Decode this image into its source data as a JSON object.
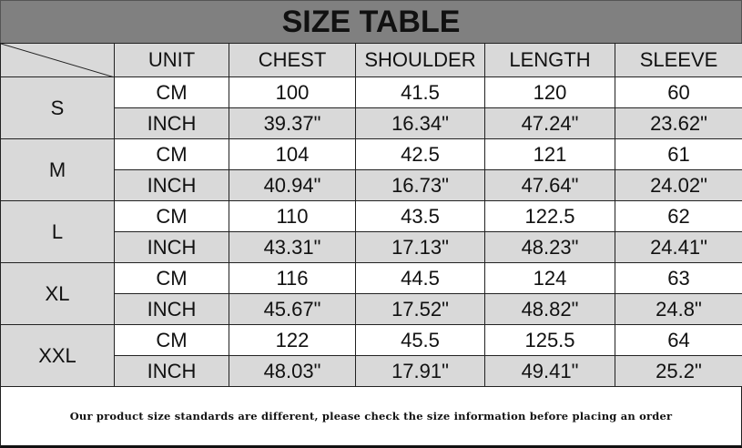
{
  "title": "SIZE TABLE",
  "headers": [
    "UNIT",
    "CHEST",
    "SHOULDER",
    "LENGTH",
    "SLEEVE"
  ],
  "sizes": [
    {
      "size": "S",
      "cm": [
        "CM",
        "100",
        "41.5",
        "120",
        "60"
      ],
      "inch": [
        "INCH",
        "39.37\"",
        "16.34\"",
        "47.24\"",
        "23.62\""
      ]
    },
    {
      "size": "M",
      "cm": [
        "CM",
        "104",
        "42.5",
        "121",
        "61"
      ],
      "inch": [
        "INCH",
        "40.94\"",
        "16.73\"",
        "47.64\"",
        "24.02\""
      ]
    },
    {
      "size": "L",
      "cm": [
        "CM",
        "110",
        "43.5",
        "122.5",
        "62"
      ],
      "inch": [
        "INCH",
        "43.31\"",
        "17.13\"",
        "48.23\"",
        "24.41\""
      ]
    },
    {
      "size": "XL",
      "cm": [
        "CM",
        "116",
        "44.5",
        "124",
        "63"
      ],
      "inch": [
        "INCH",
        "45.67\"",
        "17.52\"",
        "48.82\"",
        "24.8\""
      ]
    },
    {
      "size": "XXL",
      "cm": [
        "CM",
        "122",
        "45.5",
        "125.5",
        "64"
      ],
      "inch": [
        "INCH",
        "48.03\"",
        "17.91\"",
        "49.41\"",
        "25.2\""
      ]
    }
  ],
  "footer": "Our product size standards are different, please check the size information before placing an order",
  "colors": {
    "title_bg": "#808080",
    "cell_gray": "#d9d9d9"
  }
}
